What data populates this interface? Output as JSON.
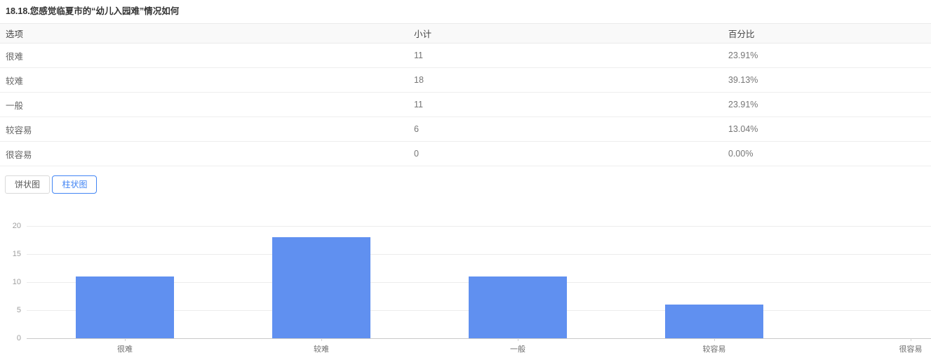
{
  "page": {
    "title": "18.18.您感觉临夏市的“幼儿入园难”情况如何"
  },
  "table": {
    "headers": [
      "选项",
      "小计",
      "百分比"
    ],
    "rows": [
      {
        "option": "很难",
        "count": "11",
        "percent": "23.91%"
      },
      {
        "option": "较难",
        "count": "18",
        "percent": "39.13%"
      },
      {
        "option": "一般",
        "count": "11",
        "percent": "23.91%"
      },
      {
        "option": "较容易",
        "count": "6",
        "percent": "13.04%"
      },
      {
        "option": "很容易",
        "count": "0",
        "percent": "0.00%"
      }
    ]
  },
  "toolbar": {
    "pie_label": "饼状图",
    "bar_label": "柱状图",
    "active": "柱状图"
  },
  "colors": {
    "accent_blue": "#4285f4",
    "bar_blue": "#6090f0",
    "grid_line": "#ececec",
    "axis_line": "#c9c9c9",
    "header_bg": "#f9f9f9"
  },
  "chart_data": {
    "type": "bar",
    "categories": [
      "很难",
      "较难",
      "一般",
      "较容易",
      "很容易"
    ],
    "values": [
      11,
      18,
      11,
      6,
      0
    ],
    "title": "",
    "xlabel": "",
    "ylabel": "",
    "ylim": [
      0,
      20
    ],
    "y_ticks": [
      0,
      5,
      10,
      15,
      20
    ],
    "grid": true,
    "legend": "none",
    "bar_color": "#6090f0"
  }
}
